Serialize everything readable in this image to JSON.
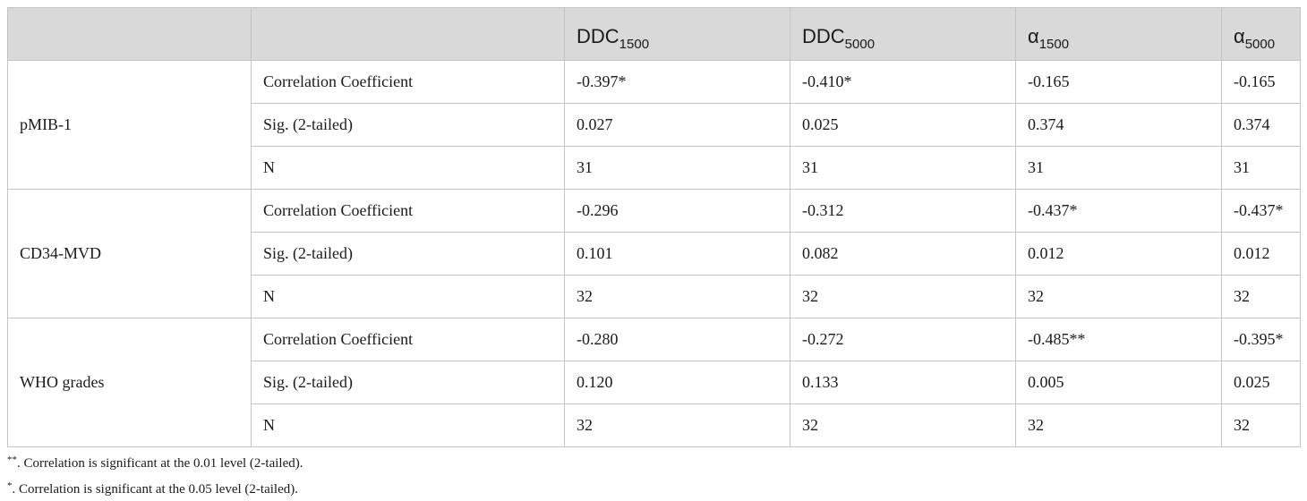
{
  "columns": [
    {
      "base": "",
      "sub": ""
    },
    {
      "base": "",
      "sub": ""
    },
    {
      "base": "DDC",
      "sub": "1500"
    },
    {
      "base": "DDC",
      "sub": "5000"
    },
    {
      "base": "α",
      "sub": "1500"
    },
    {
      "base": "α",
      "sub": "5000"
    }
  ],
  "groups": [
    {
      "name": "pMIB-1",
      "rows": [
        {
          "stat": "Correlation Coefficient",
          "values": [
            "-0.397*",
            "-0.410*",
            "-0.165",
            "-0.165"
          ]
        },
        {
          "stat": "Sig. (2-tailed)",
          "values": [
            "0.027",
            "0.025",
            "0.374",
            "0.374"
          ]
        },
        {
          "stat": "N",
          "values": [
            "31",
            "31",
            "31",
            "31"
          ]
        }
      ]
    },
    {
      "name": "CD34-MVD",
      "rows": [
        {
          "stat": "Correlation Coefficient",
          "values": [
            "-0.296",
            "-0.312",
            "-0.437*",
            "-0.437*"
          ]
        },
        {
          "stat": "Sig. (2-tailed)",
          "values": [
            "0.101",
            "0.082",
            "0.012",
            "0.012"
          ]
        },
        {
          "stat": "N",
          "values": [
            "32",
            "32",
            "32",
            "32"
          ]
        }
      ]
    },
    {
      "name": "WHO grades",
      "rows": [
        {
          "stat": "Correlation Coefficient",
          "values": [
            "-0.280",
            "-0.272",
            "-0.485**",
            "-0.395*"
          ]
        },
        {
          "stat": "Sig. (2-tailed)",
          "values": [
            "0.120",
            "0.133",
            "0.005",
            "0.025"
          ]
        },
        {
          "stat": "N",
          "values": [
            "32",
            "32",
            "32",
            "32"
          ]
        }
      ]
    }
  ],
  "footnotes": [
    {
      "mark": "**",
      "text": ". Correlation is significant at the 0.01 level (2-tailed)."
    },
    {
      "mark": "*",
      "text": ". Correlation is significant at the 0.05 level (2-tailed)."
    }
  ]
}
